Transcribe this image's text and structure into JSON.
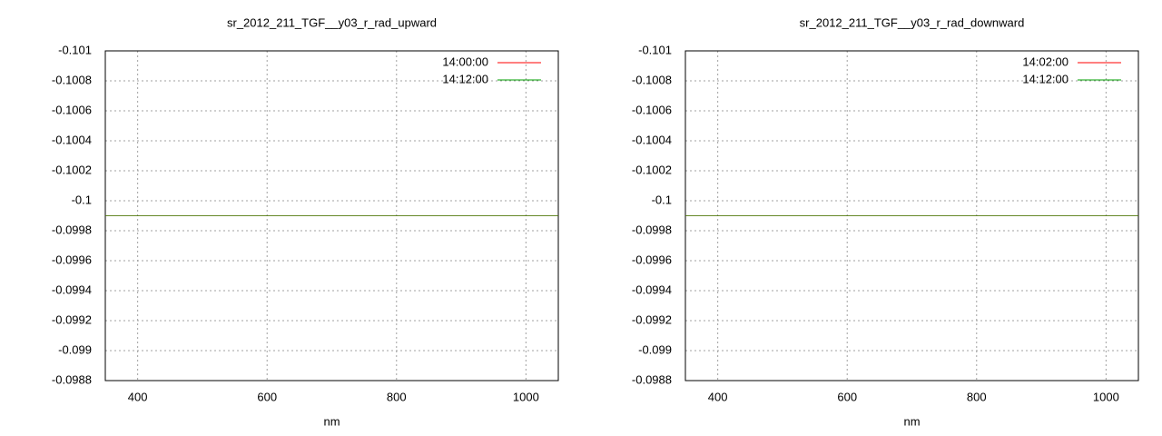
{
  "chart_data": [
    {
      "type": "line",
      "title": "sr_2012_211_TGF__y03_r_rad_upward",
      "xlabel": "nm",
      "x": [
        350,
        1050
      ],
      "series": [
        {
          "name": "14:00:00",
          "color": "#ff0000",
          "values": [
            -0.0999,
            -0.0999
          ]
        },
        {
          "name": "14:12:00",
          "color": "#00a000",
          "values": [
            -0.0999,
            -0.0999
          ]
        }
      ],
      "xlim": [
        350,
        1050
      ],
      "xticks": [
        400,
        600,
        800,
        1000
      ],
      "ylim": [
        -0.0988,
        -0.101
      ],
      "yticks": [
        -0.101,
        -0.1008,
        -0.1006,
        -0.1004,
        -0.1002,
        -0.1,
        -0.0998,
        -0.0996,
        -0.0994,
        -0.0992,
        -0.099,
        -0.0988
      ],
      "grid": true,
      "legend": "top-right"
    },
    {
      "type": "line",
      "title": "sr_2012_211_TGF__y03_r_rad_downward",
      "xlabel": "nm",
      "x": [
        350,
        1050
      ],
      "series": [
        {
          "name": "14:02:00",
          "color": "#ff0000",
          "values": [
            -0.0999,
            -0.0999
          ]
        },
        {
          "name": "14:12:00",
          "color": "#00a000",
          "values": [
            -0.0999,
            -0.0999
          ]
        }
      ],
      "xlim": [
        350,
        1050
      ],
      "xticks": [
        400,
        600,
        800,
        1000
      ],
      "ylim": [
        -0.0988,
        -0.101
      ],
      "yticks": [
        -0.101,
        -0.1008,
        -0.1006,
        -0.1004,
        -0.1002,
        -0.1,
        -0.0998,
        -0.0996,
        -0.0994,
        -0.0992,
        -0.099,
        -0.0988
      ],
      "grid": true,
      "legend": "top-right"
    }
  ]
}
